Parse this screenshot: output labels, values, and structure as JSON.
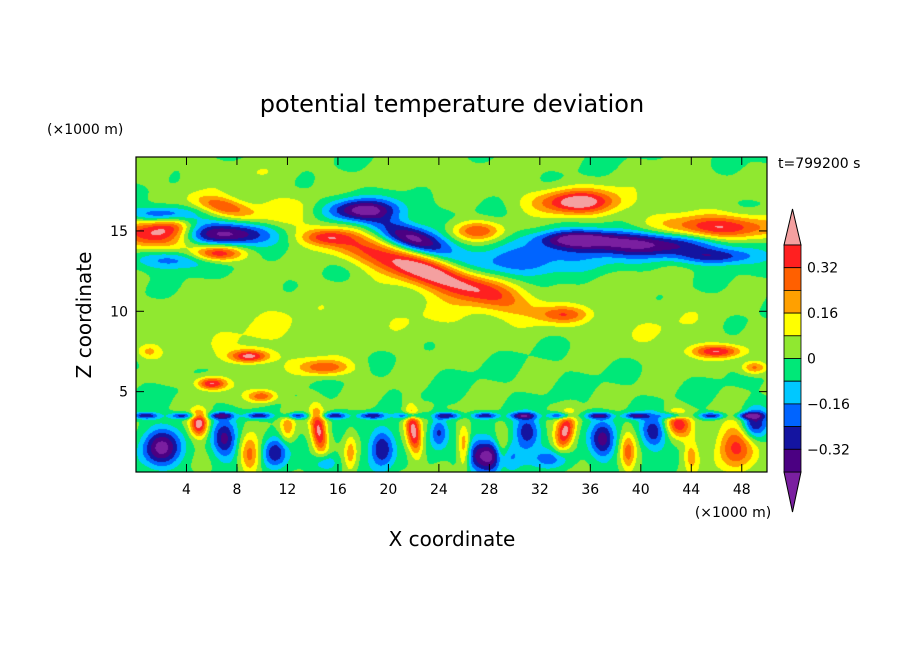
{
  "chart_data": {
    "type": "heatmap",
    "title": "potential temperature deviation",
    "xlabel": "X coordinate",
    "ylabel": "Z coordinate",
    "x_unit": "(×1000 m)",
    "y_unit": "(×1000 m)",
    "time_label": "t=799200 s",
    "xlim": [
      0,
      50
    ],
    "ylim": [
      0,
      19.6
    ],
    "x_ticks": [
      4,
      8,
      12,
      16,
      20,
      24,
      28,
      32,
      36,
      40,
      44,
      48
    ],
    "y_ticks": [
      5,
      10,
      15
    ],
    "colorbar": {
      "levels": [
        -0.4,
        -0.32,
        -0.24,
        -0.16,
        -0.08,
        0,
        0.08,
        0.16,
        0.24,
        0.32,
        0.4
      ],
      "labeled_levels": [
        0.32,
        0.16,
        0,
        -0.16,
        -0.32
      ],
      "colors": [
        "#7a1fa0",
        "#4b0082",
        "#1414a0",
        "#0064ff",
        "#00c8ff",
        "#00e878",
        "#90e830",
        "#ffff00",
        "#ffa000",
        "#ff6000",
        "#ff2020",
        "#f4a0a0"
      ],
      "extend": "both"
    },
    "features": [
      {
        "cx": 23,
        "cy": 12.5,
        "rx": 8,
        "ry": 1.0,
        "rot": -15,
        "amp": 0.48
      },
      {
        "cx": 35,
        "cy": 16.8,
        "rx": 3.5,
        "ry": 0.8,
        "rot": 0,
        "amp": 0.46
      },
      {
        "cx": 46,
        "cy": 15.2,
        "rx": 4.5,
        "ry": 0.8,
        "rot": 0,
        "amp": 0.44
      },
      {
        "cx": 1.5,
        "cy": 14.8,
        "rx": 3.0,
        "ry": 0.9,
        "rot": 0,
        "amp": 0.44
      },
      {
        "cx": 6.5,
        "cy": 13.6,
        "rx": 2.0,
        "ry": 0.5,
        "rot": 0,
        "amp": 0.42
      },
      {
        "cx": 7,
        "cy": 16.5,
        "rx": 2.5,
        "ry": 0.6,
        "rot": -10,
        "amp": 0.3
      },
      {
        "cx": 3,
        "cy": 15.3,
        "rx": 1.5,
        "ry": 0.6,
        "rot": 0,
        "amp": 0.15
      },
      {
        "cx": 27,
        "cy": 15.0,
        "rx": 2.0,
        "ry": 0.6,
        "rot": 0,
        "amp": 0.3
      },
      {
        "cx": 15,
        "cy": 14.6,
        "rx": 2.0,
        "ry": 0.5,
        "rot": 0,
        "amp": 0.24
      },
      {
        "cx": 18,
        "cy": 16.3,
        "rx": 3.0,
        "ry": 0.7,
        "rot": 0,
        "amp": -0.42
      },
      {
        "cx": 7,
        "cy": 14.8,
        "rx": 3.5,
        "ry": 0.7,
        "rot": 0,
        "amp": -0.46
      },
      {
        "cx": 2,
        "cy": 16.0,
        "rx": 2.5,
        "ry": 0.5,
        "rot": 0,
        "amp": -0.3
      },
      {
        "cx": 22,
        "cy": 14.5,
        "rx": 3.0,
        "ry": 0.8,
        "rot": -15,
        "amp": -0.44
      },
      {
        "cx": 40,
        "cy": 14.2,
        "rx": 6.5,
        "ry": 0.8,
        "rot": 0,
        "amp": -0.42
      },
      {
        "cx": 35,
        "cy": 14.5,
        "rx": 3.0,
        "ry": 0.5,
        "rot": 0,
        "amp": -0.3
      },
      {
        "cx": 46,
        "cy": 13.4,
        "rx": 3.0,
        "ry": 0.5,
        "rot": 0,
        "amp": -0.26
      },
      {
        "cx": 31,
        "cy": 13.0,
        "rx": 6.0,
        "ry": 1.0,
        "rot": 0,
        "amp": -0.2
      },
      {
        "cx": 3,
        "cy": 13.2,
        "rx": 3.0,
        "ry": 0.6,
        "rot": 0,
        "amp": -0.22
      },
      {
        "cx": 12,
        "cy": 16.5,
        "rx": 3.0,
        "ry": 0.8,
        "rot": 0,
        "amp": 0.1
      },
      {
        "cx": 25,
        "cy": 18.5,
        "rx": 5.0,
        "ry": 1.0,
        "rot": 0,
        "amp": 0.07
      },
      {
        "cx": 43,
        "cy": 18.0,
        "rx": 5.0,
        "ry": 1.0,
        "rot": 0,
        "amp": 0.06
      },
      {
        "cx": 8,
        "cy": 18.5,
        "rx": 6.0,
        "ry": 1.0,
        "rot": 0,
        "amp": 0.06
      },
      {
        "cx": 10,
        "cy": 9.0,
        "rx": 8.0,
        "ry": 2.5,
        "rot": 0,
        "amp": 0.08
      },
      {
        "cx": 25,
        "cy": 10.0,
        "rx": 6.0,
        "ry": 2.0,
        "rot": 0,
        "amp": 0.08
      },
      {
        "cx": 42,
        "cy": 9.0,
        "rx": 5.0,
        "ry": 2.0,
        "rot": 0,
        "amp": 0.07
      },
      {
        "cx": 34,
        "cy": 9.8,
        "rx": 2.0,
        "ry": 0.5,
        "rot": 0,
        "amp": 0.22
      },
      {
        "cx": 37,
        "cy": 12.0,
        "rx": 4.0,
        "ry": 0.8,
        "rot": 0,
        "amp": 0.06
      },
      {
        "cx": 9,
        "cy": 7.2,
        "rx": 1.5,
        "ry": 0.4,
        "rot": 0,
        "amp": 0.42
      },
      {
        "cx": 15,
        "cy": 6.5,
        "rx": 2.0,
        "ry": 0.5,
        "rot": 0,
        "amp": 0.3
      },
      {
        "cx": 6,
        "cy": 5.5,
        "rx": 1.2,
        "ry": 0.4,
        "rot": 0,
        "amp": 0.42
      },
      {
        "cx": 10,
        "cy": 4.7,
        "rx": 1.2,
        "ry": 0.4,
        "rot": 0,
        "amp": 0.3
      },
      {
        "cx": 46,
        "cy": 7.5,
        "rx": 2.0,
        "ry": 0.4,
        "rot": 0,
        "amp": 0.36
      },
      {
        "cx": 49,
        "cy": 6.5,
        "rx": 1.0,
        "ry": 0.4,
        "rot": 0,
        "amp": 0.28
      },
      {
        "cx": 1,
        "cy": 7.5,
        "rx": 1.0,
        "ry": 0.5,
        "rot": 0,
        "amp": 0.18
      },
      {
        "cx": 5,
        "cy": 3.0,
        "rx": 0.7,
        "ry": 0.8,
        "rot": 0,
        "amp": 0.46
      },
      {
        "cx": 14.5,
        "cy": 2.5,
        "rx": 0.6,
        "ry": 1.4,
        "rot": 10,
        "amp": 0.42
      },
      {
        "cx": 22,
        "cy": 2.5,
        "rx": 0.6,
        "ry": 1.5,
        "rot": 10,
        "amp": 0.44
      },
      {
        "cx": 34,
        "cy": 2.5,
        "rx": 0.7,
        "ry": 1.2,
        "rot": -20,
        "amp": 0.42
      },
      {
        "cx": 43,
        "cy": 3.0,
        "rx": 1.0,
        "ry": 0.8,
        "rot": -20,
        "amp": 0.36
      },
      {
        "cx": 47.5,
        "cy": 1.6,
        "rx": 1.5,
        "ry": 1.5,
        "rot": 0,
        "amp": 0.34
      },
      {
        "cx": 26,
        "cy": 1.5,
        "rx": 0.5,
        "ry": 1.4,
        "rot": 0,
        "amp": 0.3
      },
      {
        "cx": 9,
        "cy": 1.0,
        "rx": 0.8,
        "ry": 1.2,
        "rot": 0,
        "amp": 0.28
      },
      {
        "cx": 29,
        "cy": 1.2,
        "rx": 0.6,
        "ry": 1.2,
        "rot": 0,
        "amp": 0.26
      },
      {
        "cx": 39,
        "cy": 1.2,
        "rx": 0.6,
        "ry": 1.2,
        "rot": 0,
        "amp": 0.26
      },
      {
        "cx": 12,
        "cy": 2.8,
        "rx": 0.6,
        "ry": 1.0,
        "rot": 0,
        "amp": 0.22
      },
      {
        "cx": 17,
        "cy": 1.2,
        "rx": 0.5,
        "ry": 1.2,
        "rot": 0,
        "amp": 0.2
      },
      {
        "cx": 44,
        "cy": 1.0,
        "rx": 0.6,
        "ry": 1.0,
        "rot": 0,
        "amp": 0.2
      },
      {
        "cx": 2,
        "cy": 1.5,
        "rx": 1.5,
        "ry": 1.2,
        "rot": 0,
        "amp": -0.42
      },
      {
        "cx": 7,
        "cy": 2.0,
        "rx": 1.0,
        "ry": 1.2,
        "rot": 0,
        "amp": -0.34
      },
      {
        "cx": 11,
        "cy": 1.2,
        "rx": 1.0,
        "ry": 1.0,
        "rot": 0,
        "amp": -0.3
      },
      {
        "cx": 19.5,
        "cy": 1.5,
        "rx": 1.0,
        "ry": 1.2,
        "rot": 0,
        "amp": -0.34
      },
      {
        "cx": 28,
        "cy": 1.0,
        "rx": 2.0,
        "ry": 1.0,
        "rot": 0,
        "amp": -0.46
      },
      {
        "cx": 31,
        "cy": 2.5,
        "rx": 1.0,
        "ry": 1.0,
        "rot": 0,
        "amp": -0.3
      },
      {
        "cx": 37,
        "cy": 2.0,
        "rx": 1.0,
        "ry": 1.2,
        "rot": 0,
        "amp": -0.34
      },
      {
        "cx": 41,
        "cy": 2.5,
        "rx": 1.0,
        "ry": 1.0,
        "rot": 0,
        "amp": -0.3
      },
      {
        "cx": 49,
        "cy": 3.0,
        "rx": 1.0,
        "ry": 1.0,
        "rot": 0,
        "amp": -0.34
      },
      {
        "cx": 24,
        "cy": 2.5,
        "rx": 0.7,
        "ry": 1.0,
        "rot": 0,
        "amp": -0.26
      },
      {
        "cx": 15,
        "cy": 0.6,
        "rx": 1.0,
        "ry": 0.6,
        "rot": 0,
        "amp": -0.2
      },
      {
        "cx": 33,
        "cy": 0.8,
        "rx": 1.5,
        "ry": 0.6,
        "rot": 0,
        "amp": -0.2
      }
    ],
    "bands": [
      {
        "y": 3.5,
        "width": 0.2,
        "amp": -0.3
      }
    ]
  }
}
